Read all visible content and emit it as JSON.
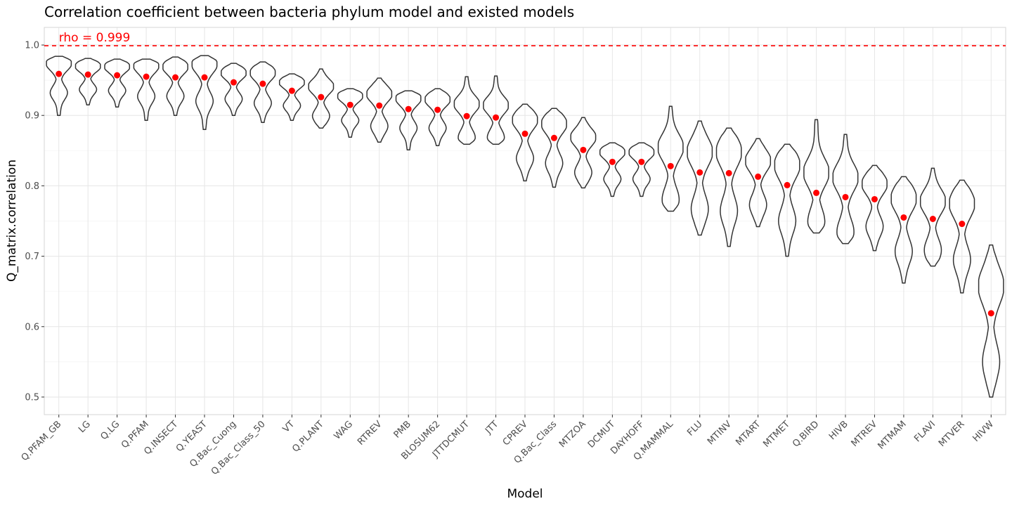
{
  "chart_data": {
    "type": "violin",
    "title": "Correlation coefficient between bacteria phylum model and existed models",
    "xlabel": "Model",
    "ylabel": "Q_matrix.correlation",
    "ylim": [
      0.475,
      1.025
    ],
    "yticks": [
      0.5,
      0.6,
      0.7,
      0.8,
      0.9,
      1.0
    ],
    "ytick_labels": [
      "0.5",
      "0.6",
      "0.7",
      "0.8",
      "0.9",
      "1.0"
    ],
    "grid": true,
    "reference_line": {
      "value": 0.999,
      "label": "rho = 0.999",
      "color": "#ff0000",
      "style": "dashed"
    },
    "mean_point_color": "#ff0000",
    "violin_color": "#333333",
    "series": [
      {
        "model": "Q.PFAM_GB",
        "mean": 0.959,
        "min": 0.9,
        "max": 0.984
      },
      {
        "model": "LG",
        "mean": 0.958,
        "min": 0.915,
        "max": 0.981
      },
      {
        "model": "Q.LG",
        "mean": 0.957,
        "min": 0.912,
        "max": 0.98
      },
      {
        "model": "Q.PFAM",
        "mean": 0.955,
        "min": 0.893,
        "max": 0.98
      },
      {
        "model": "Q.INSECT",
        "mean": 0.954,
        "min": 0.9,
        "max": 0.983
      },
      {
        "model": "Q.YEAST",
        "mean": 0.954,
        "min": 0.88,
        "max": 0.985
      },
      {
        "model": "Q.Bac_Cuong",
        "mean": 0.947,
        "min": 0.9,
        "max": 0.974
      },
      {
        "model": "Q.Bac_Class_50",
        "mean": 0.945,
        "min": 0.89,
        "max": 0.976
      },
      {
        "model": "VT",
        "mean": 0.935,
        "min": 0.893,
        "max": 0.959
      },
      {
        "model": "Q.PLANT",
        "mean": 0.926,
        "min": 0.882,
        "max": 0.966
      },
      {
        "model": "WAG",
        "mean": 0.915,
        "min": 0.869,
        "max": 0.938
      },
      {
        "model": "RTREV",
        "mean": 0.914,
        "min": 0.862,
        "max": 0.953
      },
      {
        "model": "PMB",
        "mean": 0.909,
        "min": 0.851,
        "max": 0.935
      },
      {
        "model": "BLOSUM62",
        "mean": 0.908,
        "min": 0.857,
        "max": 0.938
      },
      {
        "model": "JTTDCMUT",
        "mean": 0.899,
        "min": 0.859,
        "max": 0.955
      },
      {
        "model": "JTT",
        "mean": 0.897,
        "min": 0.859,
        "max": 0.956
      },
      {
        "model": "CPREV",
        "mean": 0.874,
        "min": 0.807,
        "max": 0.916
      },
      {
        "model": "Q.Bac_Class",
        "mean": 0.868,
        "min": 0.798,
        "max": 0.91
      },
      {
        "model": "MTZOA",
        "mean": 0.851,
        "min": 0.797,
        "max": 0.897
      },
      {
        "model": "DCMUT",
        "mean": 0.834,
        "min": 0.785,
        "max": 0.861
      },
      {
        "model": "DAYHOFF",
        "mean": 0.834,
        "min": 0.785,
        "max": 0.861
      },
      {
        "model": "Q.MAMMAL",
        "mean": 0.828,
        "min": 0.764,
        "max": 0.913
      },
      {
        "model": "FLU",
        "mean": 0.819,
        "min": 0.73,
        "max": 0.892
      },
      {
        "model": "MTINV",
        "mean": 0.818,
        "min": 0.714,
        "max": 0.882
      },
      {
        "model": "MTART",
        "mean": 0.813,
        "min": 0.742,
        "max": 0.867
      },
      {
        "model": "MTMET",
        "mean": 0.801,
        "min": 0.7,
        "max": 0.859
      },
      {
        "model": "Q.BIRD",
        "mean": 0.79,
        "min": 0.733,
        "max": 0.894
      },
      {
        "model": "HIVB",
        "mean": 0.784,
        "min": 0.718,
        "max": 0.873
      },
      {
        "model": "MTREV",
        "mean": 0.781,
        "min": 0.708,
        "max": 0.829
      },
      {
        "model": "MTMAM",
        "mean": 0.755,
        "min": 0.662,
        "max": 0.813
      },
      {
        "model": "FLAVI",
        "mean": 0.753,
        "min": 0.686,
        "max": 0.825
      },
      {
        "model": "MTVER",
        "mean": 0.746,
        "min": 0.648,
        "max": 0.808
      },
      {
        "model": "HIVW",
        "mean": 0.619,
        "min": 0.5,
        "max": 0.716
      }
    ]
  }
}
